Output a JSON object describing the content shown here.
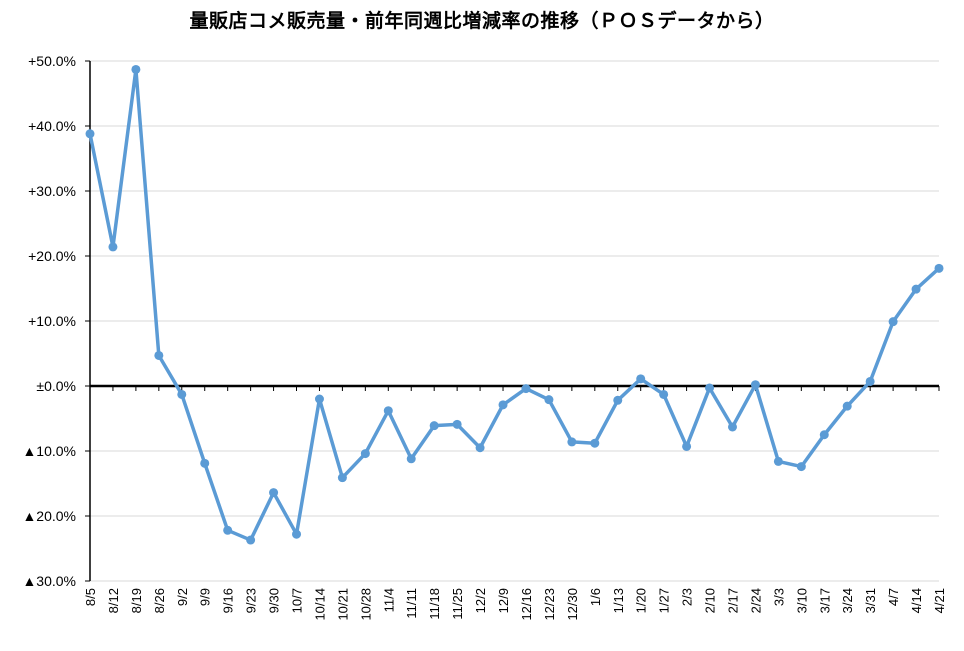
{
  "chart_data": {
    "type": "line",
    "title": "量販店コメ販売量・前年同週比増減率の推移（ＰＯＳデータから）",
    "xlabel": "",
    "ylabel": "",
    "ylim": [
      -30,
      50
    ],
    "yticks": [
      {
        "value": 50,
        "label": "+50.0%"
      },
      {
        "value": 40,
        "label": "+40.0%"
      },
      {
        "value": 30,
        "label": "+30.0%"
      },
      {
        "value": 20,
        "label": "+20.0%"
      },
      {
        "value": 10,
        "label": "+10.0%"
      },
      {
        "value": 0,
        "label": "±0.0%"
      },
      {
        "value": -10,
        "label": "▲10.0%"
      },
      {
        "value": -20,
        "label": "▲20.0%"
      },
      {
        "value": -30,
        "label": "▲30.0%"
      }
    ],
    "grid": true,
    "legend": "none",
    "line_color": "#5B9BD5",
    "x": [
      "8/5",
      "8/12",
      "8/19",
      "8/26",
      "9/2",
      "9/9",
      "9/16",
      "9/23",
      "9/30",
      "10/7",
      "10/14",
      "10/21",
      "10/28",
      "11/4",
      "11/11",
      "11/18",
      "11/25",
      "12/2",
      "12/9",
      "12/16",
      "12/23",
      "12/30",
      "1/6",
      "1/13",
      "1/20",
      "1/27",
      "2/3",
      "2/10",
      "2/17",
      "2/24",
      "3/3",
      "3/10",
      "3/17",
      "3/24",
      "3/31",
      "4/7",
      "4/14",
      "4/21"
    ],
    "values": [
      38.8,
      21.4,
      48.7,
      4.7,
      -1.3,
      -11.9,
      -22.2,
      -23.7,
      -16.4,
      -22.8,
      -2.0,
      -14.1,
      -10.4,
      -3.8,
      -11.2,
      -6.1,
      -5.9,
      -9.5,
      -2.9,
      -0.4,
      -2.1,
      -8.6,
      -8.8,
      -2.2,
      1.1,
      -1.3,
      -9.3,
      -0.3,
      -6.3,
      0.2,
      -11.6,
      -12.4,
      -7.5,
      -3.1,
      0.7,
      9.9,
      14.9,
      18.1
    ]
  }
}
